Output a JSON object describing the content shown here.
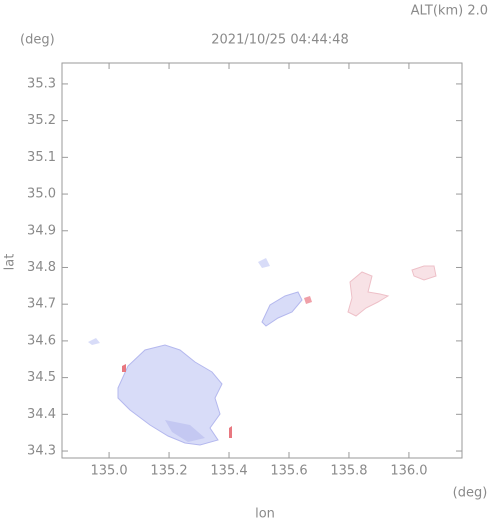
{
  "chart_data": {
    "type": "map",
    "title": "2021/10/25 04:44:48",
    "subtitle": "ALT(km) 2.0",
    "y_unit": "(deg)",
    "x_unit": "(deg)",
    "xlabel": "lon",
    "ylabel": "lat",
    "xlim": [
      134.843,
      136.177
    ],
    "ylim": [
      34.281,
      35.357
    ],
    "xticks": [
      {
        "value": 135.0,
        "label": "135.0"
      },
      {
        "value": 135.2,
        "label": "135.2"
      },
      {
        "value": 135.4,
        "label": "135.4"
      },
      {
        "value": 135.6,
        "label": "135.6"
      },
      {
        "value": 135.8,
        "label": "135.8"
      },
      {
        "value": 136.0,
        "label": "136.0"
      }
    ],
    "yticks": [
      {
        "value": 34.3,
        "label": "34.3"
      },
      {
        "value": 34.4,
        "label": "34.4"
      },
      {
        "value": 34.5,
        "label": "34.5"
      },
      {
        "value": 34.6,
        "label": "34.6"
      },
      {
        "value": 34.7,
        "label": "34.7"
      },
      {
        "value": 34.8,
        "label": "34.8"
      },
      {
        "value": 34.9,
        "label": "34.9"
      },
      {
        "value": 35.0,
        "label": "35.0"
      },
      {
        "value": 35.1,
        "label": "35.1"
      },
      {
        "value": 35.2,
        "label": "35.2"
      },
      {
        "value": 35.3,
        "label": "35.3"
      }
    ]
  }
}
